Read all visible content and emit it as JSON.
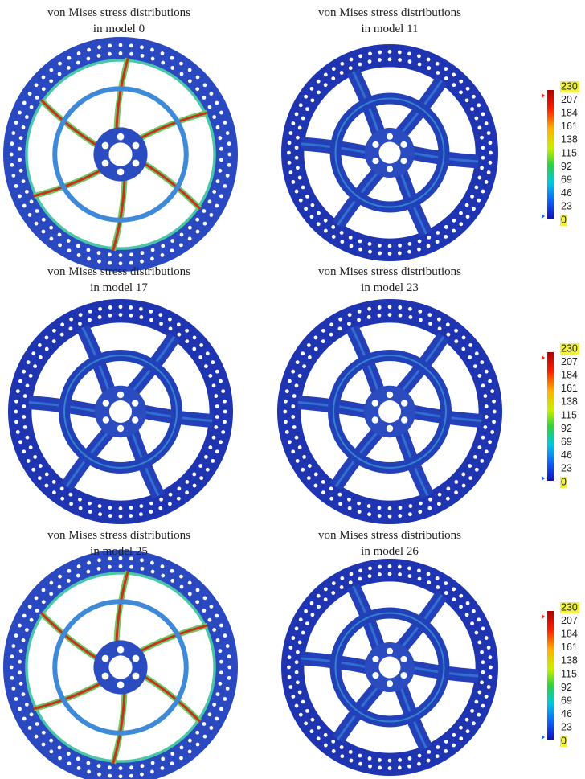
{
  "panels": [
    {
      "title": [
        "von Mises stress distributions",
        "in model 0"
      ]
    },
    {
      "title": [
        "von Mises stress distributions",
        "in model 11"
      ]
    },
    {
      "title": [
        "von Mises stress distributions",
        "in model 17"
      ]
    },
    {
      "title": [
        "von Mises stress distributions",
        "in model 23"
      ]
    },
    {
      "title": [
        "von Mises stress distributions",
        "in model 25"
      ]
    },
    {
      "title": [
        "von Mises stress distributions",
        "in model 26"
      ]
    }
  ],
  "colorbars": [
    {
      "ticks": [
        230,
        207,
        184,
        161,
        138,
        115,
        92,
        69,
        46,
        23,
        0
      ]
    },
    {
      "ticks": [
        230,
        207,
        184,
        161,
        138,
        115,
        92,
        69,
        46,
        23,
        0
      ]
    },
    {
      "ticks": [
        230,
        207,
        184,
        161,
        138,
        115,
        92,
        69,
        46,
        23,
        0
      ]
    }
  ]
}
